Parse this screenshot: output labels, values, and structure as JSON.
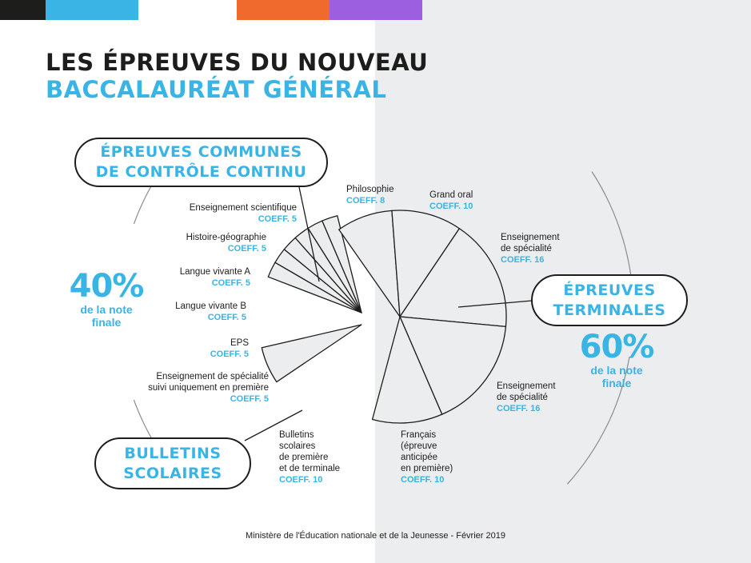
{
  "colors": {
    "accent": "#3ab4e4",
    "dark": "#1d1d1b",
    "slice_fill": "#ebedee",
    "top_bar": [
      "#1d1d1b",
      "#3ab4e4",
      "#ffffff",
      "#ef6a2c",
      "#9b5fe0"
    ]
  },
  "title": {
    "line1": "LES ÉPREUVES DU NOUVEAU",
    "line2": "BACCALAURÉAT GÉNÉRAL"
  },
  "groups": {
    "ecc": {
      "line1": "ÉPREUVES COMMUNES",
      "line2": "DE CONTRÔLE CONTINU"
    },
    "bulletins": {
      "line1": "BULLETINS",
      "line2": "SCOLAIRES"
    },
    "terminales": {
      "line1": "ÉPREUVES",
      "line2": "TERMINALES"
    }
  },
  "left_share": {
    "value": "40%",
    "caption1": "de la note",
    "caption2": "finale"
  },
  "right_share": {
    "value": "60%",
    "caption1": "de la note",
    "caption2": "finale"
  },
  "footer": "Ministère de l'Éducation nationale et de la Jeunesse - Février 2019",
  "chart_data": {
    "type": "pie",
    "unit": "COEFF.",
    "total": 100,
    "slices": [
      {
        "group": "ecc",
        "label": "Enseignement scientifique",
        "coeff": 5,
        "coeff_label": "COEFF. 5"
      },
      {
        "group": "ecc",
        "label": "Histoire-géographie",
        "coeff": 5,
        "coeff_label": "COEFF. 5"
      },
      {
        "group": "ecc",
        "label": "Langue vivante A",
        "coeff": 5,
        "coeff_label": "COEFF. 5"
      },
      {
        "group": "ecc",
        "label": "Langue vivante B",
        "coeff": 5,
        "coeff_label": "COEFF. 5"
      },
      {
        "group": "ecc",
        "label": "EPS",
        "coeff": 5,
        "coeff_label": "COEFF. 5"
      },
      {
        "group": "ecc",
        "label": "Enseignement de spécialité suivi uniquement en première",
        "label_lines": [
          "Enseignement de spécialité",
          "suivi uniquement en première"
        ],
        "coeff": 5,
        "coeff_label": "COEFF. 5"
      },
      {
        "group": "bulletins",
        "label": "Bulletins scolaires de première et de terminale",
        "label_lines": [
          "Bulletins",
          "scolaires",
          "de première",
          "et de terminale"
        ],
        "coeff": 10,
        "coeff_label": "COEFF. 10"
      },
      {
        "group": "terminales",
        "label": "Philosophie",
        "coeff": 8,
        "coeff_label": "COEFF. 8"
      },
      {
        "group": "terminales",
        "label": "Grand oral",
        "coeff": 10,
        "coeff_label": "COEFF. 10"
      },
      {
        "group": "terminales",
        "label": "Enseignement de spécialité",
        "label_lines": [
          "Enseignement",
          "de spécialité"
        ],
        "coeff": 16,
        "coeff_label": "COEFF. 16"
      },
      {
        "group": "terminales",
        "label": "Enseignement de spécialité",
        "label_lines": [
          "Enseignement",
          "de spécialité"
        ],
        "coeff": 16,
        "coeff_label": "COEFF. 16"
      },
      {
        "group": "terminales",
        "label": "Français (épreuve anticipée en première)",
        "label_lines": [
          "Français",
          "(épreuve",
          "anticipée",
          "en première)"
        ],
        "coeff": 10,
        "coeff_label": "COEFF. 10"
      }
    ]
  }
}
